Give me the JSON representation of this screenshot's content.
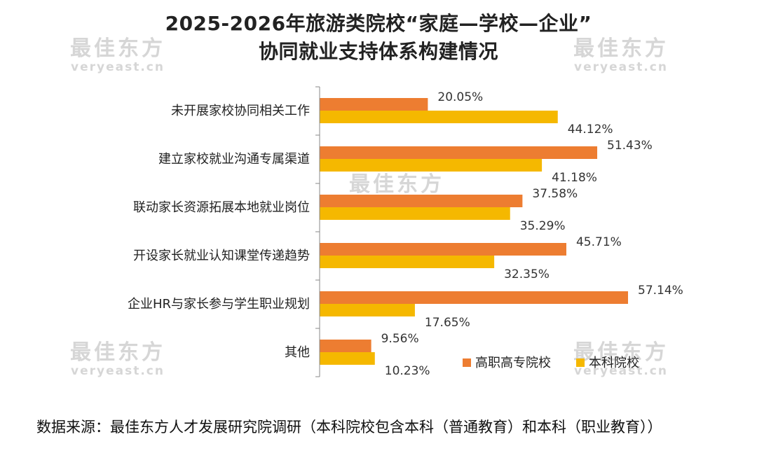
{
  "title_line1": "2025-2026年旅游类院校“家庭—学校—企业”",
  "title_line2": "协同就业支持体系构建情况",
  "source": "数据来源：最佳东方人才发展研究院调研（本科院校包含本科（普通教育）和本科（职业教育））",
  "watermark": {
    "logo": "最佳东方",
    "url": "veryeast.cn"
  },
  "colors": {
    "series1": "#ED7D31",
    "series2": "#F5B800"
  },
  "chart_data": {
    "type": "bar",
    "orientation": "horizontal",
    "categories": [
      "未开展家校协同相关工作",
      "建立家校就业沟通专属渠道",
      "联动家长资源拓展本地就业岗位",
      "开设家长就业认知课堂传递趋势",
      "企业HR与家长参与学生职业规划",
      "其他"
    ],
    "series": [
      {
        "name": "高职高专院校",
        "values": [
          20.05,
          51.43,
          37.58,
          45.71,
          57.14,
          9.56
        ],
        "labels": [
          "20.05%",
          "51.43%",
          "37.58%",
          "45.71%",
          "57.14%",
          "9.56%"
        ]
      },
      {
        "name": "本科院校",
        "values": [
          44.12,
          41.18,
          35.29,
          32.35,
          17.65,
          10.23
        ],
        "labels": [
          "44.12%",
          "41.18%",
          "35.29%",
          "32.35%",
          "17.65%",
          "10.23%"
        ]
      }
    ],
    "xlim": [
      0,
      57.14
    ],
    "grid": false,
    "legend_position": "bottom-right"
  }
}
